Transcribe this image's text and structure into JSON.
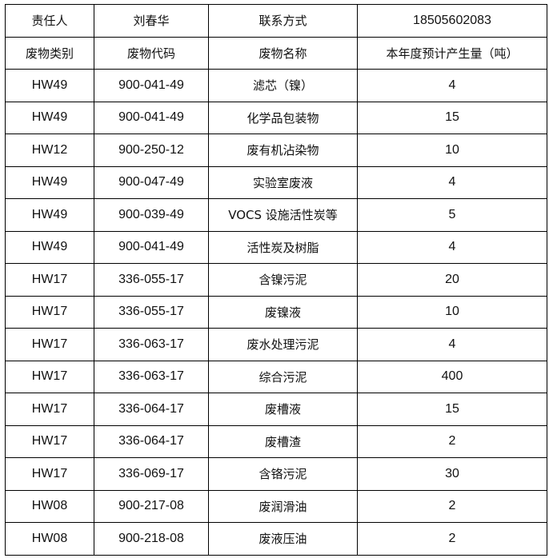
{
  "header": {
    "contact_label": "责任人",
    "contact_name": "刘春华",
    "phone_label": "联系方式",
    "phone": "18505602083"
  },
  "columns": [
    "废物类别",
    "废物代码",
    "废物名称",
    "本年度预计产生量（吨）"
  ],
  "rows": [
    [
      "HW49",
      "900-041-49",
      "滤芯（镍）",
      "4"
    ],
    [
      "HW49",
      "900-041-49",
      "化学品包装物",
      "15"
    ],
    [
      "HW12",
      "900-250-12",
      "废有机沾染物",
      "10"
    ],
    [
      "HW49",
      "900-047-49",
      "实验室废液",
      "4"
    ],
    [
      "HW49",
      "900-039-49",
      "VOCS 设施活性炭等",
      "5"
    ],
    [
      "HW49",
      "900-041-49",
      "活性炭及树脂",
      "4"
    ],
    [
      "HW17",
      "336-055-17",
      "含镍污泥",
      "20"
    ],
    [
      "HW17",
      "336-055-17",
      "废镍液",
      "10"
    ],
    [
      "HW17",
      "336-063-17",
      "废水处理污泥",
      "4"
    ],
    [
      "HW17",
      "336-063-17",
      "综合污泥",
      "400"
    ],
    [
      "HW17",
      "336-064-17",
      "废槽液",
      "15"
    ],
    [
      "HW17",
      "336-064-17",
      "废槽渣",
      "2"
    ],
    [
      "HW17",
      "336-069-17",
      "含铬污泥",
      "30"
    ],
    [
      "HW08",
      "900-217-08",
      "废润滑油",
      "2"
    ],
    [
      "HW08",
      "900-218-08",
      "废液压油",
      "2"
    ]
  ]
}
